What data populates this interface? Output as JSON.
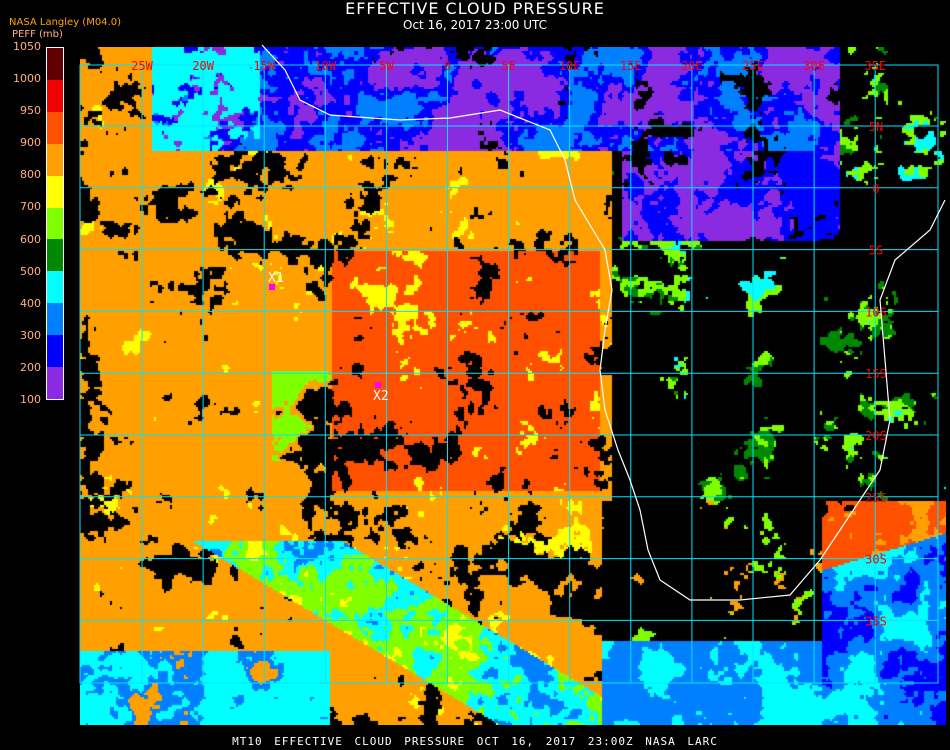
{
  "header": {
    "title": "EFFECTIVE CLOUD PRESSURE",
    "subtitle": "Oct 16, 2017 23:00 UTC",
    "organization": "NASA Langley (M04.0)"
  },
  "legend": {
    "label": "PEFF (mb)",
    "ticks": [
      "1050",
      "1000",
      "950",
      "900",
      "800",
      "700",
      "600",
      "500",
      "400",
      "300",
      "200",
      "100"
    ],
    "colors": [
      "#600000",
      "#f00000",
      "#ff5000",
      "#ffa000",
      "#ffff00",
      "#80ff00",
      "#008800",
      "#00ffff",
      "#0080ff",
      "#0000ff",
      "#8a2be2"
    ]
  },
  "map": {
    "longitude_labels": [
      "25W",
      "20W",
      "15W",
      "10W",
      "5W",
      "0",
      "5E",
      "10E",
      "15E",
      "20E",
      "25E",
      "30E",
      "35E"
    ],
    "latitude_labels": [
      "5N",
      "0",
      "5S",
      "10S",
      "15S",
      "20S",
      "25S",
      "30S",
      "35S"
    ],
    "grid_color": "#00e5ff",
    "label_color": "#ff0000",
    "coastline_color": "#ffffff",
    "markers": [
      {
        "label": "X1",
        "color": "#ff00ff"
      },
      {
        "label": "X2",
        "color": "#ff00ff"
      }
    ]
  },
  "footer": "MT10  EFFECTIVE CLOUD PRESSURE   OCT 16, 2017 23:00Z   NASA LARC"
}
